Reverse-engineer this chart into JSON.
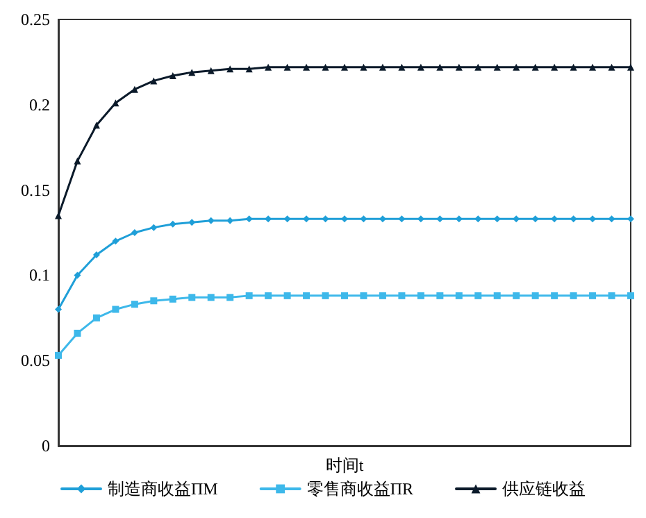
{
  "chart_data": {
    "type": "line",
    "xlabel": "时间t",
    "categories": [
      null,
      null,
      null,
      null,
      null,
      null,
      null,
      null,
      null,
      null,
      null,
      null,
      null,
      null,
      null,
      null,
      null,
      null,
      null,
      null,
      null,
      null,
      null,
      null,
      null,
      null,
      null,
      null,
      null,
      null,
      null
    ],
    "ylim": [
      0,
      0.25
    ],
    "yticks": [
      0,
      0.05,
      0.1,
      0.15,
      0.2,
      0.25
    ],
    "grid": false,
    "legend": "bottom",
    "tick_labels": "y",
    "series": [
      {
        "name": "制造商收益ΠM",
        "color": "#1f9fd8",
        "marker": "diamond",
        "values": [
          0.08,
          0.1,
          0.112,
          0.12,
          0.125,
          0.128,
          0.13,
          0.131,
          0.132,
          0.132,
          0.133,
          0.133,
          0.133,
          0.133,
          0.133,
          0.133,
          0.133,
          0.133,
          0.133,
          0.133,
          0.133,
          0.133,
          0.133,
          0.133,
          0.133,
          0.133,
          0.133,
          0.133,
          0.133,
          0.133,
          0.133
        ]
      },
      {
        "name": "零售商收益ΠR",
        "color": "#3db8ea",
        "marker": "square",
        "values": [
          0.053,
          0.066,
          0.075,
          0.08,
          0.083,
          0.085,
          0.086,
          0.087,
          0.087,
          0.087,
          0.088,
          0.088,
          0.088,
          0.088,
          0.088,
          0.088,
          0.088,
          0.088,
          0.088,
          0.088,
          0.088,
          0.088,
          0.088,
          0.088,
          0.088,
          0.088,
          0.088,
          0.088,
          0.088,
          0.088,
          0.088
        ]
      },
      {
        "name": "供应链收益",
        "color": "#0b1a2a",
        "marker": "triangle",
        "values": [
          0.135,
          0.167,
          0.188,
          0.201,
          0.209,
          0.214,
          0.217,
          0.219,
          0.22,
          0.221,
          0.221,
          0.222,
          0.222,
          0.222,
          0.222,
          0.222,
          0.222,
          0.222,
          0.222,
          0.222,
          0.222,
          0.222,
          0.222,
          0.222,
          0.222,
          0.222,
          0.222,
          0.222,
          0.222,
          0.222,
          0.222
        ]
      }
    ]
  }
}
